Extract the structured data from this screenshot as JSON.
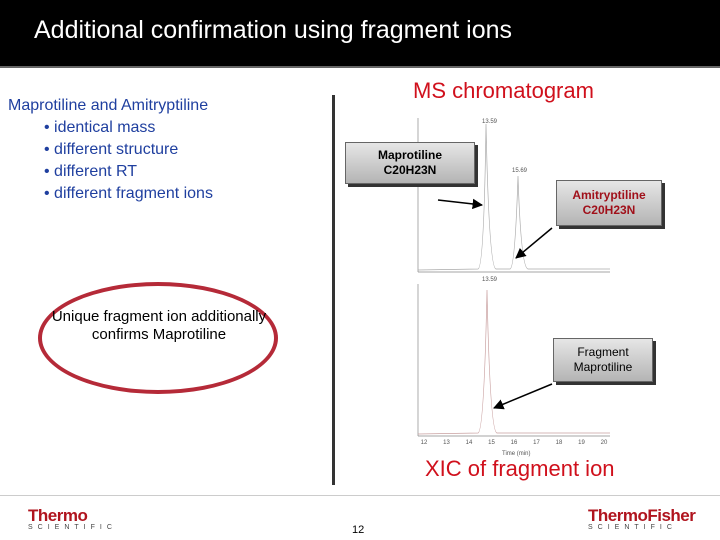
{
  "header": {
    "title": "Additional confirmation using fragment ions"
  },
  "left_text": {
    "heading": "Maprotiline and Amitryptiline",
    "bullets": [
      "• identical mass",
      "• different structure",
      "• different RT",
      "• different fragment ions"
    ]
  },
  "callout": "Unique fragment ion additionally confirms Maprotiline",
  "chart_panel": {
    "title": "MS chromatogram",
    "caption": "XIC of fragment ion",
    "top_peak_labels": [
      "13.59",
      "15.69"
    ],
    "bottom_peak_label": "13.59",
    "x_axis_labels": [
      "12",
      "13",
      "14",
      "15",
      "16",
      "17",
      "18",
      "19",
      "20"
    ],
    "x_axis_title": "Time (min)",
    "boxes": {
      "maprotiline": "Maprotiline C20H23N",
      "amitryptiline": "Amitryptiline C20H23N",
      "fragment": "Fragment Maprotiline"
    }
  },
  "footer": {
    "left_logo": {
      "name": "Thermo",
      "sub": "SCIENTIFIC"
    },
    "right_logo": {
      "name": "ThermoFisher",
      "sub": "SCIENTIFIC"
    },
    "page_number": "12"
  }
}
